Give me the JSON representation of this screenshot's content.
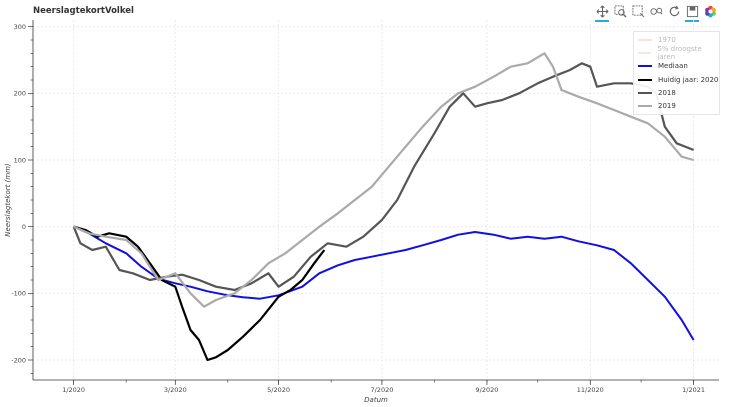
{
  "title": "NeerslagtekortVolkel",
  "toolbar": [
    {
      "name": "pan-icon",
      "active": true
    },
    {
      "name": "box-zoom-icon",
      "active": false
    },
    {
      "name": "box-select-icon",
      "active": false
    },
    {
      "name": "wheel-zoom-icon",
      "active": false
    },
    {
      "name": "reset-icon",
      "active": false
    },
    {
      "name": "save-icon",
      "active": true
    },
    {
      "name": "bokeh-logo-icon",
      "active": false
    }
  ],
  "chart_data": {
    "type": "line",
    "title": "NeerslagtekortVolkel",
    "xlabel": "Datum",
    "ylabel": "Neerslagtekort (mm)",
    "xlim": [
      "2019-12-08",
      "2021-01-16"
    ],
    "ylim": [
      -230,
      310
    ],
    "x_ticks": [
      "1/2020",
      "3/2020",
      "5/2020",
      "7/2020",
      "9/2020",
      "11/2020",
      "1/2021"
    ],
    "x_tick_dates": [
      "2020-01-01",
      "2020-03-01",
      "2020-05-01",
      "2020-07-01",
      "2020-09-01",
      "2020-11-01",
      "2021-01-01"
    ],
    "y_ticks": [
      -200,
      -100,
      0,
      100,
      200,
      300
    ],
    "grid": true,
    "legend_position": "top-right",
    "series": [
      {
        "name": "1970",
        "color": "#f4a6a6",
        "muted": true,
        "width": 2,
        "points": []
      },
      {
        "name": "5% droogste jaren",
        "color": "#a8d8a0",
        "muted": true,
        "width": 2,
        "points": []
      },
      {
        "name": "Mediaan",
        "color": "#1010e0",
        "muted": false,
        "width": 2,
        "points": [
          [
            "2020-01-01",
            0
          ],
          [
            "2020-01-10",
            -10
          ],
          [
            "2020-01-20",
            -25
          ],
          [
            "2020-02-01",
            -40
          ],
          [
            "2020-02-10",
            -60
          ],
          [
            "2020-02-20",
            -78
          ],
          [
            "2020-03-01",
            -85
          ],
          [
            "2020-03-10",
            -90
          ],
          [
            "2020-03-20",
            -97
          ],
          [
            "2020-04-01",
            -103
          ],
          [
            "2020-04-10",
            -106
          ],
          [
            "2020-04-20",
            -108
          ],
          [
            "2020-05-01",
            -103
          ],
          [
            "2020-05-15",
            -90
          ],
          [
            "2020-05-25",
            -70
          ],
          [
            "2020-06-05",
            -58
          ],
          [
            "2020-06-15",
            -50
          ],
          [
            "2020-06-25",
            -45
          ],
          [
            "2020-07-05",
            -40
          ],
          [
            "2020-07-15",
            -35
          ],
          [
            "2020-07-25",
            -28
          ],
          [
            "2020-08-05",
            -20
          ],
          [
            "2020-08-15",
            -12
          ],
          [
            "2020-08-25",
            -8
          ],
          [
            "2020-09-05",
            -12
          ],
          [
            "2020-09-15",
            -18
          ],
          [
            "2020-09-25",
            -15
          ],
          [
            "2020-10-05",
            -18
          ],
          [
            "2020-10-15",
            -15
          ],
          [
            "2020-10-25",
            -22
          ],
          [
            "2020-11-05",
            -28
          ],
          [
            "2020-11-15",
            -35
          ],
          [
            "2020-11-25",
            -55
          ],
          [
            "2020-12-05",
            -80
          ],
          [
            "2020-12-15",
            -105
          ],
          [
            "2020-12-25",
            -140
          ],
          [
            "2021-01-01",
            -170
          ]
        ]
      },
      {
        "name": "Huidig jaar: 2020",
        "color": "#000000",
        "muted": false,
        "width": 2.2,
        "points": [
          [
            "2020-01-01",
            0
          ],
          [
            "2020-01-08",
            -5
          ],
          [
            "2020-01-15",
            -15
          ],
          [
            "2020-01-22",
            -10
          ],
          [
            "2020-02-01",
            -15
          ],
          [
            "2020-02-08",
            -30
          ],
          [
            "2020-02-15",
            -55
          ],
          [
            "2020-02-22",
            -80
          ],
          [
            "2020-03-01",
            -90
          ],
          [
            "2020-03-05",
            -120
          ],
          [
            "2020-03-10",
            -155
          ],
          [
            "2020-03-15",
            -170
          ],
          [
            "2020-03-20",
            -200
          ],
          [
            "2020-03-25",
            -196
          ],
          [
            "2020-04-01",
            -185
          ],
          [
            "2020-04-10",
            -165
          ],
          [
            "2020-04-20",
            -140
          ],
          [
            "2020-05-01",
            -105
          ],
          [
            "2020-05-08",
            -95
          ],
          [
            "2020-05-15",
            -80
          ],
          [
            "2020-05-22",
            -55
          ],
          [
            "2020-05-28",
            -35
          ]
        ]
      },
      {
        "name": "2018",
        "color": "#555555",
        "muted": false,
        "width": 2.2,
        "points": [
          [
            "2020-01-01",
            0
          ],
          [
            "2020-01-05",
            -25
          ],
          [
            "2020-01-12",
            -35
          ],
          [
            "2020-01-20",
            -30
          ],
          [
            "2020-01-28",
            -65
          ],
          [
            "2020-02-05",
            -70
          ],
          [
            "2020-02-15",
            -80
          ],
          [
            "2020-02-25",
            -75
          ],
          [
            "2020-03-05",
            -72
          ],
          [
            "2020-03-15",
            -80
          ],
          [
            "2020-03-25",
            -90
          ],
          [
            "2020-04-05",
            -95
          ],
          [
            "2020-04-15",
            -85
          ],
          [
            "2020-04-25",
            -70
          ],
          [
            "2020-05-01",
            -90
          ],
          [
            "2020-05-10",
            -75
          ],
          [
            "2020-05-20",
            -45
          ],
          [
            "2020-05-30",
            -25
          ],
          [
            "2020-06-10",
            -30
          ],
          [
            "2020-06-20",
            -15
          ],
          [
            "2020-07-01",
            10
          ],
          [
            "2020-07-10",
            40
          ],
          [
            "2020-07-20",
            90
          ],
          [
            "2020-08-01",
            140
          ],
          [
            "2020-08-10",
            180
          ],
          [
            "2020-08-18",
            200
          ],
          [
            "2020-08-25",
            180
          ],
          [
            "2020-09-01",
            185
          ],
          [
            "2020-09-10",
            190
          ],
          [
            "2020-09-20",
            200
          ],
          [
            "2020-10-01",
            215
          ],
          [
            "2020-10-10",
            225
          ],
          [
            "2020-10-20",
            235
          ],
          [
            "2020-10-27",
            245
          ],
          [
            "2020-11-01",
            240
          ],
          [
            "2020-11-05",
            210
          ],
          [
            "2020-11-15",
            215
          ],
          [
            "2020-11-25",
            215
          ],
          [
            "2020-12-05",
            210
          ],
          [
            "2020-12-10",
            200
          ],
          [
            "2020-12-15",
            150
          ],
          [
            "2020-12-22",
            125
          ],
          [
            "2021-01-01",
            115
          ]
        ]
      },
      {
        "name": "2019",
        "color": "#aaaaaa",
        "muted": false,
        "width": 2.2,
        "points": [
          [
            "2020-01-01",
            0
          ],
          [
            "2020-01-10",
            -10
          ],
          [
            "2020-01-20",
            -15
          ],
          [
            "2020-02-01",
            -20
          ],
          [
            "2020-02-10",
            -40
          ],
          [
            "2020-02-20",
            -80
          ],
          [
            "2020-03-01",
            -70
          ],
          [
            "2020-03-10",
            -100
          ],
          [
            "2020-03-18",
            -120
          ],
          [
            "2020-03-25",
            -110
          ],
          [
            "2020-04-05",
            -100
          ],
          [
            "2020-04-15",
            -80
          ],
          [
            "2020-04-25",
            -55
          ],
          [
            "2020-05-05",
            -40
          ],
          [
            "2020-05-15",
            -20
          ],
          [
            "2020-05-25",
            0
          ],
          [
            "2020-06-05",
            20
          ],
          [
            "2020-06-15",
            40
          ],
          [
            "2020-06-25",
            60
          ],
          [
            "2020-07-05",
            90
          ],
          [
            "2020-07-15",
            120
          ],
          [
            "2020-07-25",
            150
          ],
          [
            "2020-08-05",
            180
          ],
          [
            "2020-08-15",
            200
          ],
          [
            "2020-08-25",
            210
          ],
          [
            "2020-09-05",
            225
          ],
          [
            "2020-09-15",
            240
          ],
          [
            "2020-09-25",
            245
          ],
          [
            "2020-10-05",
            260
          ],
          [
            "2020-10-10",
            240
          ],
          [
            "2020-10-15",
            205
          ],
          [
            "2020-10-25",
            195
          ],
          [
            "2020-11-05",
            185
          ],
          [
            "2020-11-15",
            175
          ],
          [
            "2020-11-25",
            165
          ],
          [
            "2020-12-05",
            155
          ],
          [
            "2020-12-15",
            135
          ],
          [
            "2020-12-25",
            105
          ],
          [
            "2021-01-01",
            100
          ]
        ]
      }
    ]
  }
}
